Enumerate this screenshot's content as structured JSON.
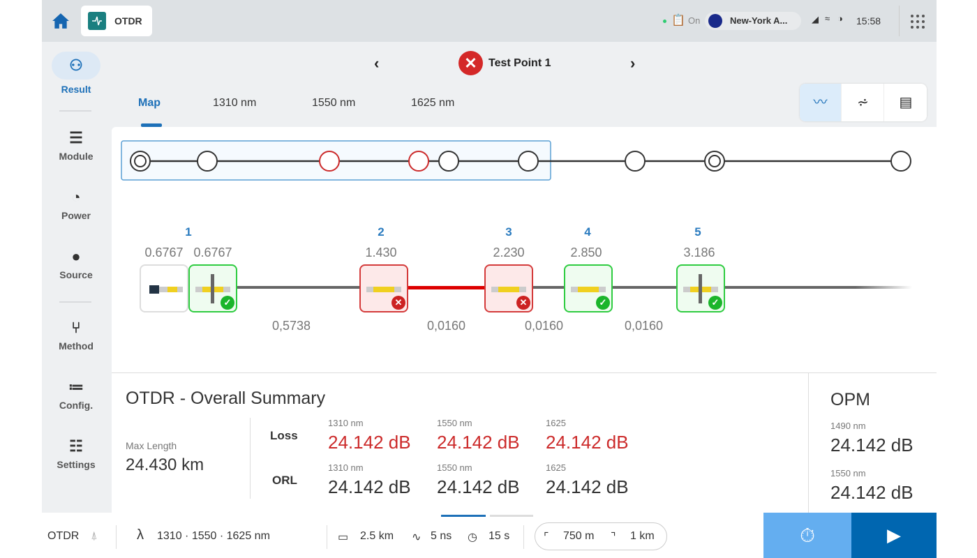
{
  "topbar": {
    "app_title": "OTDR",
    "status_on": "On",
    "location": "New-York A...",
    "time": "15:58"
  },
  "nav": {
    "title": "Test Point 1",
    "status": "fail"
  },
  "sidebar": {
    "items": [
      {
        "label": "Result",
        "icon": "result-icon",
        "active": true
      },
      {
        "label": "Module",
        "icon": "module-icon"
      },
      {
        "label": "Power",
        "icon": "gauge-icon"
      },
      {
        "label": "Source",
        "icon": "bulb-icon"
      },
      {
        "label": "Method",
        "icon": "fork-icon"
      },
      {
        "label": "Config.",
        "icon": "list-icon"
      },
      {
        "label": "Settings",
        "icon": "sliders-icon"
      }
    ]
  },
  "tabs": [
    {
      "label": "Map",
      "active": true
    },
    {
      "label": "1310 nm"
    },
    {
      "label": "1550 nm"
    },
    {
      "label": "1625 nm"
    }
  ],
  "overview": {
    "nodes": [
      "double",
      "normal",
      "fail",
      "fail",
      "normal",
      "normal",
      "normal",
      "double",
      "normal"
    ]
  },
  "events": [
    {
      "num": "1",
      "dist": "0.6767",
      "launch_dist": "0.6767",
      "status": "ok"
    },
    {
      "num": "2",
      "dist": "1.430",
      "status": "fail"
    },
    {
      "num": "3",
      "dist": "2.230",
      "status": "fail"
    },
    {
      "num": "4",
      "dist": "2.850",
      "status": "ok"
    },
    {
      "num": "5",
      "dist": "3.186",
      "status": "ok"
    }
  ],
  "segments": [
    "0,5738",
    "0,0160",
    "0,0160",
    "0,0160"
  ],
  "summary": {
    "title": "OTDR - Overall Summary",
    "max_length_label": "Max Length",
    "max_length": "24.430 km",
    "loss_label": "Loss",
    "orl_label": "ORL",
    "loss": [
      {
        "wl": "1310 nm",
        "value": "24.142 dB"
      },
      {
        "wl": "1550 nm",
        "value": "24.142 dB"
      },
      {
        "wl": "1625",
        "value": "24.142 dB"
      }
    ],
    "orl": [
      {
        "wl": "1310 nm",
        "value": "24.142 dB"
      },
      {
        "wl": "1550 nm",
        "value": "24.142 dB"
      },
      {
        "wl": "1625",
        "value": "24.142 dB"
      }
    ]
  },
  "opm": {
    "title": "OPM",
    "rows": [
      {
        "wl": "1490 nm",
        "value": "24.142 dB"
      },
      {
        "wl": "1550 nm",
        "value": "24.142 dB"
      }
    ]
  },
  "bottom": {
    "mode": "OTDR",
    "lambda": "λ",
    "wavelengths": "1310 · 1550 · 1625 nm",
    "range": "2.5 km",
    "pulse": "5 ns",
    "time": "15 s",
    "loop1": "750 m",
    "loop2": "1 km"
  },
  "colors": {
    "accent": "#0066b0",
    "fail": "#cc2a2a",
    "ok": "#1bb52b",
    "timer_button": "#64aef0"
  }
}
